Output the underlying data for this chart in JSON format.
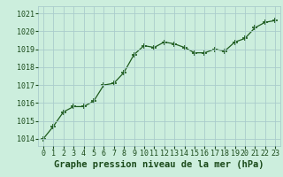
{
  "x": [
    0,
    1,
    2,
    3,
    4,
    5,
    6,
    7,
    8,
    9,
    10,
    11,
    12,
    13,
    14,
    15,
    16,
    17,
    18,
    19,
    20,
    21,
    22,
    23
  ],
  "y": [
    1014.0,
    1014.7,
    1015.5,
    1015.8,
    1015.8,
    1016.1,
    1017.0,
    1017.1,
    1017.7,
    1018.7,
    1019.2,
    1019.1,
    1019.4,
    1019.3,
    1019.1,
    1018.8,
    1018.8,
    1019.0,
    1018.9,
    1019.4,
    1019.6,
    1020.2,
    1020.5,
    1020.6
  ],
  "line_color": "#1e5c1e",
  "marker": "+",
  "marker_size": 4,
  "marker_lw": 1.2,
  "bg_color": "#cceedd",
  "grid_color": "#aacccc",
  "xlabel": "Graphe pression niveau de la mer (hPa)",
  "xlabel_color": "#1a4a1a",
  "xlabel_fontsize": 7.5,
  "tick_color": "#1a4a1a",
  "tick_fontsize": 6.0,
  "ylim": [
    1013.6,
    1021.4
  ],
  "yticks": [
    1014,
    1015,
    1016,
    1017,
    1018,
    1019,
    1020,
    1021
  ],
  "xlim": [
    -0.5,
    23.5
  ],
  "xticks": [
    0,
    1,
    2,
    3,
    4,
    5,
    6,
    7,
    8,
    9,
    10,
    11,
    12,
    13,
    14,
    15,
    16,
    17,
    18,
    19,
    20,
    21,
    22,
    23
  ]
}
